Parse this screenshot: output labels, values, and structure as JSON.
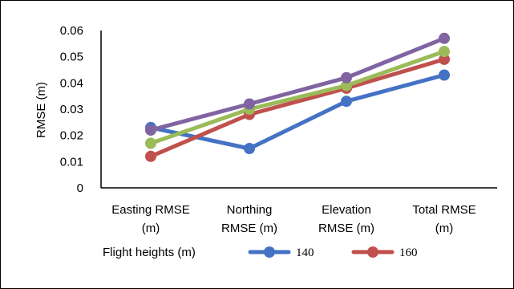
{
  "chart_data": {
    "type": "line",
    "ylabel": "RMSE (m)",
    "ylim": [
      0,
      0.06
    ],
    "yticks": [
      "0",
      "0.01",
      "0.02",
      "0.03",
      "0.04",
      "0.05",
      "0.06"
    ],
    "categories": [
      [
        "Easting RMSE",
        "(m)"
      ],
      [
        "Northing",
        "RMSE (m)"
      ],
      [
        "Elevation",
        "RMSE (m)"
      ],
      [
        "Total RMSE",
        "(m)"
      ]
    ],
    "legend_title": "Flight heights (m)",
    "legend_position": "bottom",
    "grid": false,
    "series": [
      {
        "name": "140",
        "color": "#4472C4",
        "values": [
          0.023,
          0.015,
          0.033,
          0.043
        ]
      },
      {
        "name": "160",
        "color": "#C0504D",
        "values": [
          0.012,
          0.028,
          0.038,
          0.049
        ]
      },
      {
        "color": "#9BBB59",
        "values": [
          0.017,
          0.03,
          0.039,
          0.052
        ]
      },
      {
        "color": "#8064A2",
        "values": [
          0.022,
          0.032,
          0.042,
          0.057
        ]
      }
    ]
  }
}
